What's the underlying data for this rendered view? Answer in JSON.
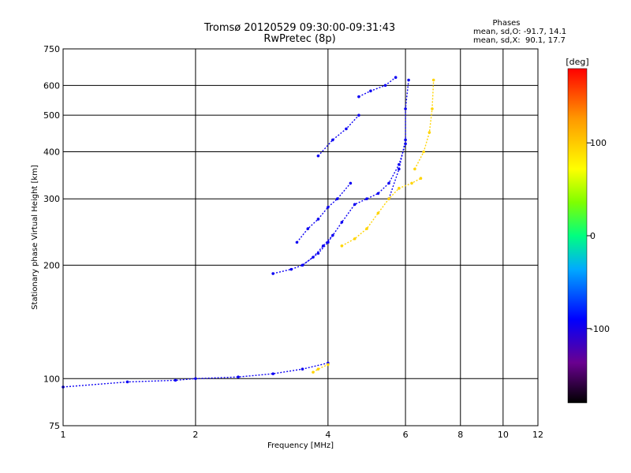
{
  "chart_data": {
    "type": "scatter",
    "title": "Tromsø 20120529 09:30:00-09:31:43",
    "subtitle": "RwPretec (8p)",
    "xlabel": "Frequency [MHz]",
    "ylabel": "Stationary phase Virtual Height [km]",
    "x_scale": "log",
    "y_scale": "log",
    "xlim": [
      1,
      12
    ],
    "ylim": [
      75,
      750
    ],
    "x_ticks": [
      1,
      2,
      4,
      6,
      8,
      10,
      12
    ],
    "y_ticks": [
      75,
      100,
      200,
      300,
      400,
      500,
      600,
      750
    ],
    "grid": true,
    "phase_stats": {
      "heading": "Phases",
      "line_o": "mean, sd,O: -91.7, 14.1",
      "line_x": "mean, sd,X:  90.1, 17.7"
    },
    "colorbar": {
      "label": "[deg]",
      "min": -180,
      "max": 180,
      "ticks": [
        100,
        0,
        -100
      ]
    },
    "series": [
      {
        "mode": "O",
        "phase_deg": -95,
        "segments": [
          {
            "x": [
              1.0,
              1.4,
              1.8,
              2.0,
              2.5,
              3.0,
              3.5,
              4.0
            ],
            "y": [
              95,
              98,
              99,
              100,
              101,
              103,
              106,
              110
            ]
          },
          {
            "x": [
              3.0,
              3.3,
              3.5,
              3.7,
              3.9,
              4.1
            ],
            "y": [
              190,
              195,
              200,
              210,
              225,
              240
            ]
          },
          {
            "x": [
              3.4,
              3.6,
              3.8,
              4.0,
              4.2,
              4.5
            ],
            "y": [
              230,
              250,
              265,
              285,
              300,
              330
            ]
          },
          {
            "x": [
              3.5,
              3.8,
              4.0,
              4.3,
              4.6,
              4.9,
              5.2,
              5.5,
              5.8,
              6.0
            ],
            "y": [
              200,
              215,
              230,
              260,
              290,
              300,
              310,
              330,
              370,
              420
            ]
          },
          {
            "x": [
              5.5,
              5.8,
              6.0,
              6.0,
              6.1
            ],
            "y": [
              300,
              360,
              430,
              520,
              620
            ]
          },
          {
            "x": [
              3.8,
              4.1,
              4.4,
              4.7
            ],
            "y": [
              390,
              430,
              460,
              500
            ]
          },
          {
            "x": [
              4.7,
              5.0,
              5.4,
              5.7
            ],
            "y": [
              560,
              580,
              600,
              630
            ]
          }
        ]
      },
      {
        "mode": "X",
        "phase_deg": 95,
        "segments": [
          {
            "x": [
              3.7,
              3.8,
              4.0
            ],
            "y": [
              104,
              106,
              109
            ]
          },
          {
            "x": [
              4.3,
              4.6,
              4.9,
              5.2,
              5.5,
              5.8,
              6.2,
              6.5
            ],
            "y": [
              225,
              235,
              250,
              275,
              300,
              320,
              330,
              340
            ]
          },
          {
            "x": [
              6.3,
              6.6,
              6.8,
              6.9,
              6.95
            ],
            "y": [
              360,
              400,
              450,
              520,
              620
            ]
          }
        ]
      }
    ]
  }
}
